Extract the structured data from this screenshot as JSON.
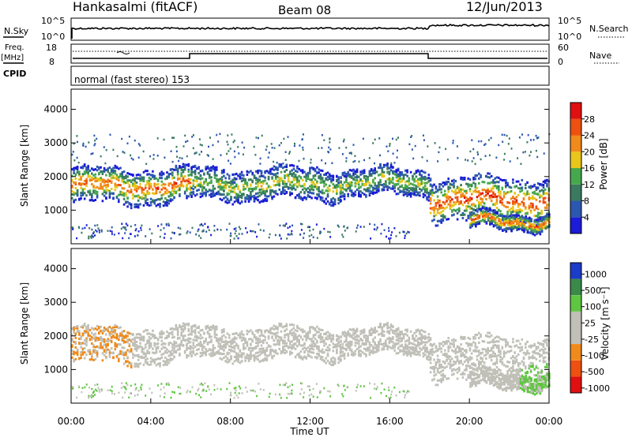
{
  "header": {
    "station": "Hankasalmi (fitACF)",
    "beam": "Beam 08",
    "date": "12/Jun/2013"
  },
  "status_panel": {
    "nsky_label": "N.Sky",
    "nsky_tick_top": "10^5",
    "nsky_tick_bottom": "10^0",
    "nsearch_label": "N.Search",
    "nsearch_tick_top": "10^5",
    "nsearch_tick_bottom": "10^0",
    "freq_label": "Freq.",
    "freq_unit": "[MHz]",
    "freq_tick_top": "18",
    "freq_tick_bottom": "8",
    "nave_label": "Nave",
    "nave_tick_top": "60",
    "nave_tick_bottom": "0",
    "cpid_label": "CPID",
    "cpid_value": "normal (fast stereo) 153"
  },
  "colors": {
    "power_scale": [
      "#1b1bd8",
      "#2c57b0",
      "#3a7a60",
      "#46a84c",
      "#e8c61a",
      "#f08a1a",
      "#ee5010",
      "#e01010"
    ],
    "velocity_scale": [
      "#e01010",
      "#ee5010",
      "#f08a1a",
      "#c0c0b8",
      "#c0c0b8",
      "#5ec640",
      "#3a8a4a",
      "#1b3cc8"
    ]
  },
  "chart_data": [
    {
      "type": "heatmap",
      "panel": "power",
      "ylabel": "Slant Range [km]",
      "yticks": [
        "1000",
        "2000",
        "3000",
        "4000"
      ],
      "ylim": [
        0,
        4600
      ],
      "xlim": [
        0,
        24
      ],
      "colorbar_label": "Power [dB]",
      "colorbar_ticks": [
        "4",
        "8",
        "12",
        "16",
        "20",
        "24",
        "28"
      ],
      "colorbar_range": [
        0,
        32
      ],
      "scatter_bands": [
        {
          "t0": 0.0,
          "t1": 6.0,
          "center": 1750,
          "width": 650,
          "peak": 26
        },
        {
          "t0": 6.0,
          "t1": 13.5,
          "center": 1800,
          "width": 600,
          "peak": 18
        },
        {
          "t0": 13.5,
          "t1": 18.0,
          "center": 1850,
          "width": 500,
          "peak": 18
        },
        {
          "t0": 18.0,
          "t1": 24.0,
          "center": 1350,
          "width": 800,
          "peak": 28
        },
        {
          "t0": 20.0,
          "t1": 24.0,
          "center": 700,
          "width": 300,
          "peak": 26
        }
      ]
    },
    {
      "type": "heatmap",
      "panel": "velocity",
      "ylabel": "Slant Range [km]",
      "yticks": [
        "1000",
        "2000",
        "3000",
        "4000"
      ],
      "ylim": [
        0,
        4600
      ],
      "xlim": [
        0,
        24
      ],
      "xticks": [
        "00:00",
        "04:00",
        "08:00",
        "12:00",
        "16:00",
        "20:00",
        "00:00"
      ],
      "xlabel": "Time UT",
      "colorbar_label": "Velocity [m s⁻¹]",
      "colorbar_ticks": [
        "-1000",
        "-500",
        "-100",
        "-25",
        "25",
        "100",
        "500",
        "1000"
      ],
      "colorbar_range": [
        -1200,
        1200
      ]
    }
  ]
}
